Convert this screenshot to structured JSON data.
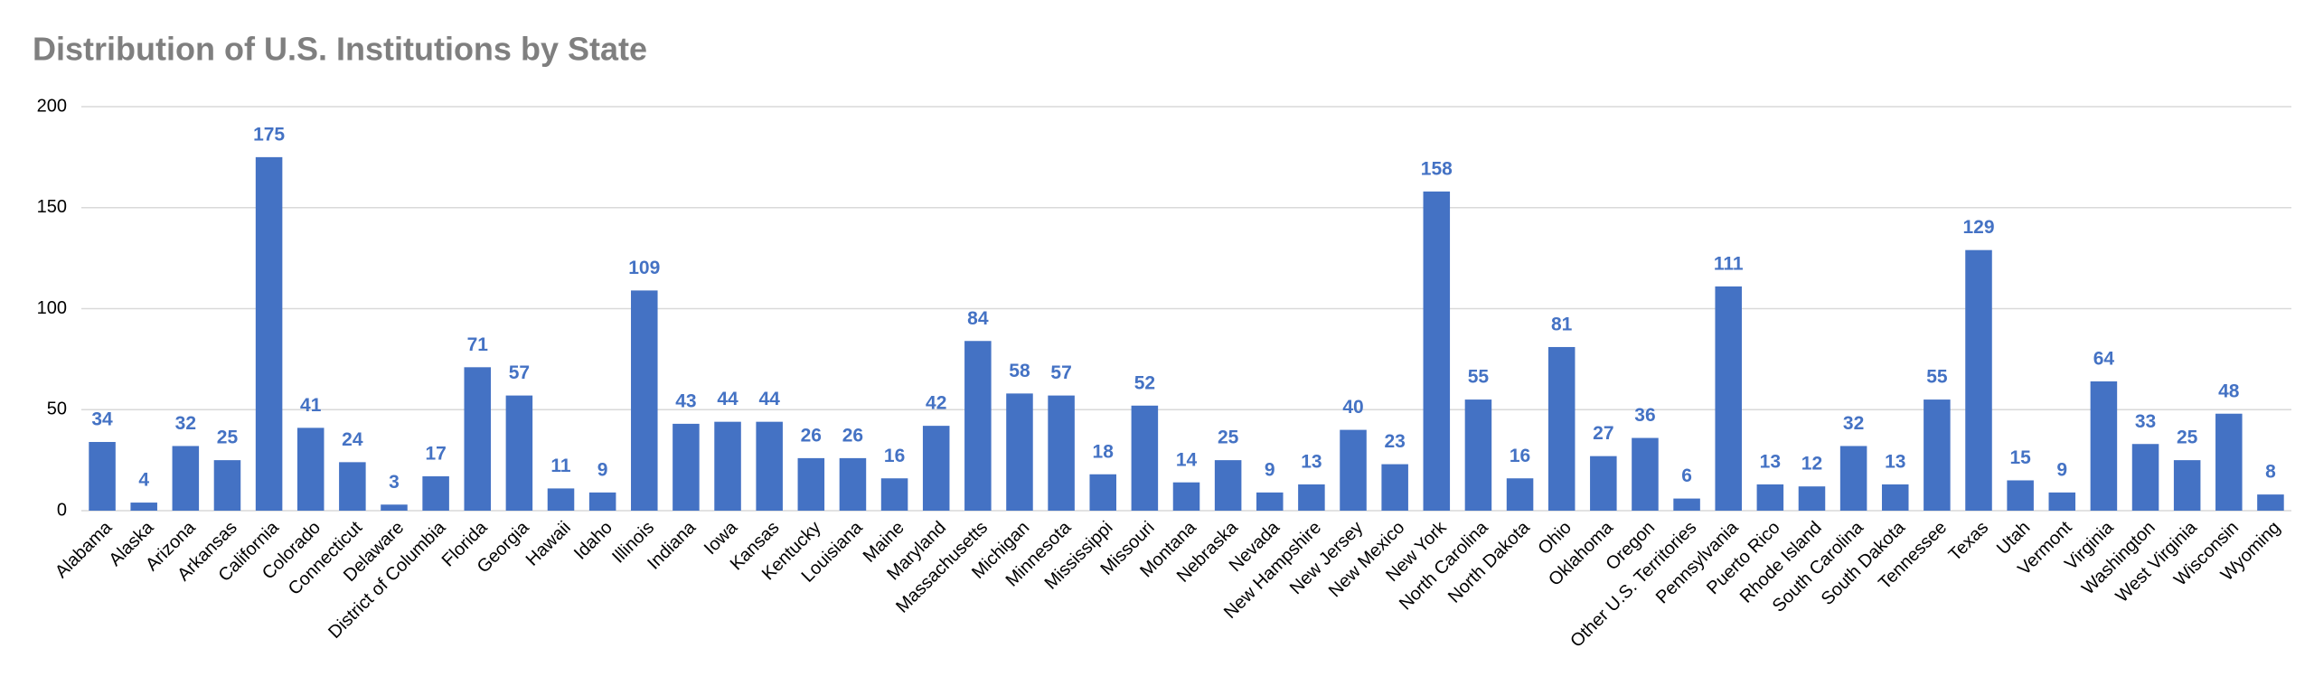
{
  "chart_data": {
    "type": "bar",
    "title": "Distribution of U.S. Institutions by State",
    "categories": [
      "Alabama",
      "Alaska",
      "Arizona",
      "Arkansas",
      "California",
      "Colorado",
      "Connecticut",
      "Delaware",
      "District of Columbia",
      "Florida",
      "Georgia",
      "Hawaii",
      "Idaho",
      "Illinois",
      "Indiana",
      "Iowa",
      "Kansas",
      "Kentucky",
      "Louisiana",
      "Maine",
      "Maryland",
      "Massachusetts",
      "Michigan",
      "Minnesota",
      "Mississippi",
      "Missouri",
      "Montana",
      "Nebraska",
      "Nevada",
      "New Hampshire",
      "New Jersey",
      "New Mexico",
      "New York",
      "North Carolina",
      "North Dakota",
      "Ohio",
      "Oklahoma",
      "Oregon",
      "Other U.S. Territories",
      "Pennsylvania",
      "Puerto Rico",
      "Rhode Island",
      "South Carolina",
      "South Dakota",
      "Tennessee",
      "Texas",
      "Utah",
      "Vermont",
      "Virginia",
      "Washington",
      "West Virginia",
      "Wisconsin",
      "Wyoming"
    ],
    "values": [
      34,
      4,
      32,
      25,
      175,
      41,
      24,
      3,
      17,
      71,
      57,
      11,
      9,
      109,
      43,
      44,
      44,
      26,
      26,
      16,
      42,
      84,
      58,
      57,
      18,
      52,
      14,
      25,
      9,
      13,
      40,
      23,
      158,
      55,
      16,
      81,
      27,
      36,
      6,
      111,
      13,
      12,
      32,
      13,
      55,
      129,
      15,
      9,
      64,
      33,
      25,
      48,
      8
    ],
    "color": "#4472c4",
    "ylim": [
      0,
      200
    ],
    "yticks": [
      0,
      50,
      100,
      150,
      200
    ],
    "grid": true
  }
}
